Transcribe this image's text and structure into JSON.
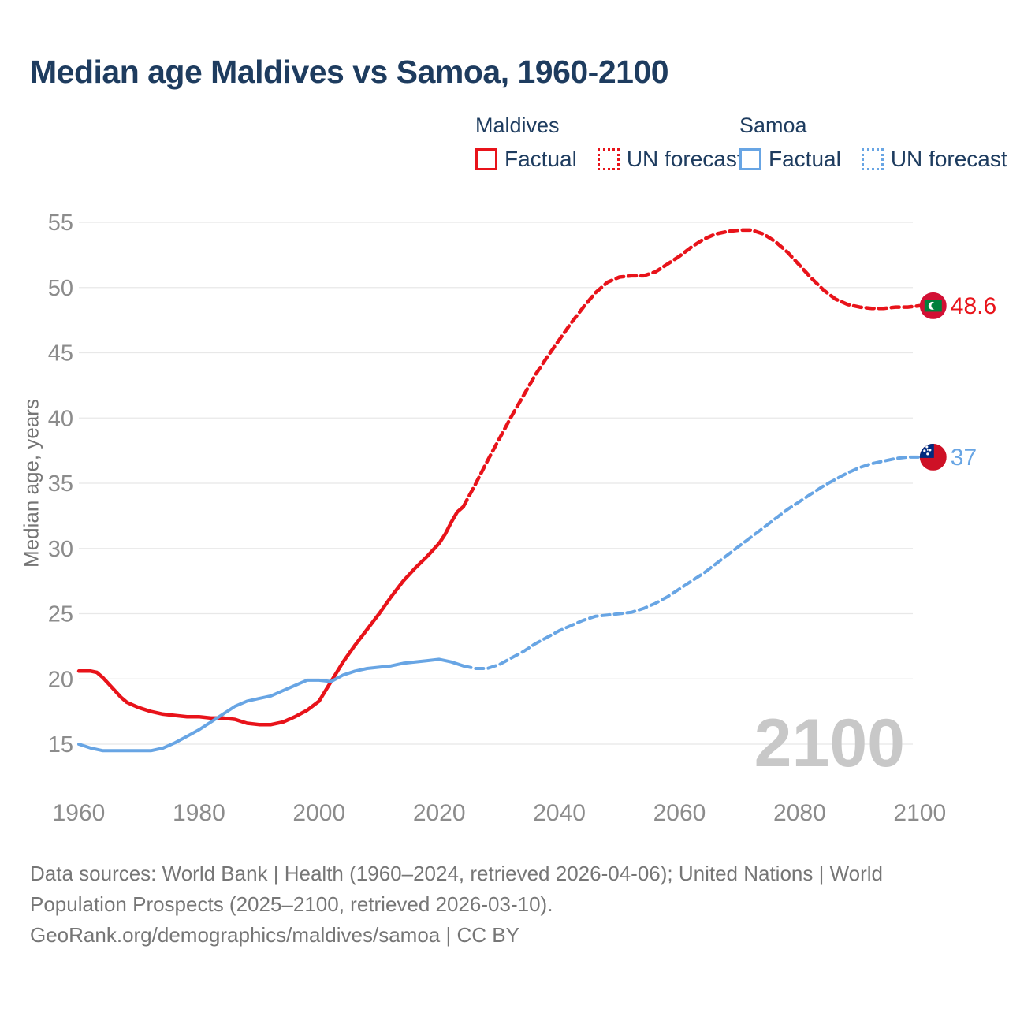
{
  "header": {
    "title": "Median age Maldives vs Samoa, 1960-2100"
  },
  "legend": {
    "groups": [
      {
        "label": "Maldives",
        "color": "#e8131a",
        "items": [
          {
            "label": "Factual",
            "style": "solid"
          },
          {
            "label": "UN forecast",
            "style": "dotted"
          }
        ]
      },
      {
        "label": "Samoa",
        "color": "#68a5e4",
        "items": [
          {
            "label": "Factual",
            "style": "solid"
          },
          {
            "label": "UN forecast",
            "style": "dotted"
          }
        ]
      }
    ]
  },
  "colors": {
    "maldives_line": "#e8131a",
    "samoa_line": "#68a5e4",
    "title_text": "#1e3c5f",
    "axis_text": "#8c8c8c",
    "muted_text": "#757575",
    "grid": "#e8e8e8",
    "watermark": "#c8c8c8",
    "maldives_flag": {
      "field": "#d21034",
      "panel": "#00803d",
      "crescent": "#ffffff"
    },
    "samoa_flag": {
      "field": "#ce1126",
      "canton": "#002b7f",
      "stars": "#ffffff"
    }
  },
  "annotations": {
    "watermark": "2100",
    "maldives_end_label": "48.6",
    "samoa_end_label": "37"
  },
  "chart_data": {
    "type": "line",
    "title": "Median age Maldives vs Samoa, 1960-2100",
    "xlabel": "",
    "ylabel": "Median age, years",
    "xlim": [
      1956,
      2112
    ],
    "ylim": [
      13,
      57
    ],
    "xticks": [
      1960,
      1980,
      2000,
      2020,
      2040,
      2060,
      2080,
      2100
    ],
    "yticks": [
      15,
      20,
      25,
      30,
      35,
      40,
      45,
      50,
      55
    ],
    "grid": "horizontal-only",
    "legend_position": "top-right",
    "series": [
      {
        "id": "maldives-factual-line",
        "name": "Maldives — Factual",
        "color": "#e8131a",
        "style": "solid",
        "points": [
          [
            1960,
            20.6
          ],
          [
            1962,
            20.6
          ],
          [
            1963,
            20.5
          ],
          [
            1964,
            20.1
          ],
          [
            1965,
            19.6
          ],
          [
            1966,
            19.1
          ],
          [
            1967,
            18.6
          ],
          [
            1968,
            18.2
          ],
          [
            1969,
            18.0
          ],
          [
            1970,
            17.8
          ],
          [
            1972,
            17.5
          ],
          [
            1974,
            17.3
          ],
          [
            1976,
            17.2
          ],
          [
            1978,
            17.1
          ],
          [
            1980,
            17.1
          ],
          [
            1982,
            17.0
          ],
          [
            1984,
            17.0
          ],
          [
            1986,
            16.9
          ],
          [
            1988,
            16.6
          ],
          [
            1990,
            16.5
          ],
          [
            1992,
            16.5
          ],
          [
            1994,
            16.7
          ],
          [
            1996,
            17.1
          ],
          [
            1998,
            17.6
          ],
          [
            2000,
            18.3
          ],
          [
            2002,
            19.8
          ],
          [
            2004,
            21.3
          ],
          [
            2006,
            22.6
          ],
          [
            2008,
            23.8
          ],
          [
            2010,
            25.0
          ],
          [
            2012,
            26.3
          ],
          [
            2014,
            27.5
          ],
          [
            2016,
            28.5
          ],
          [
            2018,
            29.4
          ],
          [
            2020,
            30.4
          ],
          [
            2021,
            31.1
          ],
          [
            2022,
            32.0
          ],
          [
            2023,
            32.8
          ],
          [
            2024,
            33.2
          ]
        ]
      },
      {
        "id": "maldives-forecast-line",
        "name": "Maldives — UN forecast",
        "color": "#e8131a",
        "style": "dashed",
        "points": [
          [
            2024,
            33.2
          ],
          [
            2026,
            34.9
          ],
          [
            2028,
            36.7
          ],
          [
            2030,
            38.4
          ],
          [
            2032,
            40.1
          ],
          [
            2034,
            41.7
          ],
          [
            2036,
            43.3
          ],
          [
            2038,
            44.7
          ],
          [
            2040,
            46.0
          ],
          [
            2042,
            47.3
          ],
          [
            2044,
            48.5
          ],
          [
            2046,
            49.6
          ],
          [
            2048,
            50.4
          ],
          [
            2050,
            50.8
          ],
          [
            2052,
            50.9
          ],
          [
            2054,
            50.9
          ],
          [
            2056,
            51.2
          ],
          [
            2058,
            51.8
          ],
          [
            2060,
            52.4
          ],
          [
            2062,
            53.1
          ],
          [
            2064,
            53.7
          ],
          [
            2066,
            54.1
          ],
          [
            2068,
            54.3
          ],
          [
            2070,
            54.4
          ],
          [
            2072,
            54.4
          ],
          [
            2074,
            54.1
          ],
          [
            2076,
            53.5
          ],
          [
            2078,
            52.7
          ],
          [
            2080,
            51.7
          ],
          [
            2082,
            50.7
          ],
          [
            2084,
            49.8
          ],
          [
            2086,
            49.1
          ],
          [
            2088,
            48.7
          ],
          [
            2090,
            48.5
          ],
          [
            2092,
            48.4
          ],
          [
            2094,
            48.4
          ],
          [
            2096,
            48.5
          ],
          [
            2098,
            48.5
          ],
          [
            2100,
            48.6
          ]
        ]
      },
      {
        "id": "samoa-factual-line",
        "name": "Samoa — Factual",
        "color": "#68a5e4",
        "style": "solid",
        "points": [
          [
            1960,
            15.0
          ],
          [
            1962,
            14.7
          ],
          [
            1964,
            14.5
          ],
          [
            1966,
            14.5
          ],
          [
            1968,
            14.5
          ],
          [
            1970,
            14.5
          ],
          [
            1972,
            14.5
          ],
          [
            1974,
            14.7
          ],
          [
            1976,
            15.1
          ],
          [
            1978,
            15.6
          ],
          [
            1980,
            16.1
          ],
          [
            1982,
            16.7
          ],
          [
            1984,
            17.3
          ],
          [
            1986,
            17.9
          ],
          [
            1988,
            18.3
          ],
          [
            1990,
            18.5
          ],
          [
            1992,
            18.7
          ],
          [
            1994,
            19.1
          ],
          [
            1996,
            19.5
          ],
          [
            1998,
            19.9
          ],
          [
            2000,
            19.9
          ],
          [
            2002,
            19.8
          ],
          [
            2004,
            20.3
          ],
          [
            2006,
            20.6
          ],
          [
            2008,
            20.8
          ],
          [
            2010,
            20.9
          ],
          [
            2012,
            21.0
          ],
          [
            2014,
            21.2
          ],
          [
            2016,
            21.3
          ],
          [
            2018,
            21.4
          ],
          [
            2020,
            21.5
          ],
          [
            2022,
            21.3
          ],
          [
            2024,
            21.0
          ]
        ]
      },
      {
        "id": "samoa-forecast-line",
        "name": "Samoa — UN forecast",
        "color": "#68a5e4",
        "style": "dashed",
        "points": [
          [
            2024,
            21.0
          ],
          [
            2026,
            20.8
          ],
          [
            2028,
            20.8
          ],
          [
            2030,
            21.1
          ],
          [
            2032,
            21.6
          ],
          [
            2034,
            22.1
          ],
          [
            2036,
            22.7
          ],
          [
            2038,
            23.2
          ],
          [
            2040,
            23.7
          ],
          [
            2042,
            24.1
          ],
          [
            2044,
            24.5
          ],
          [
            2046,
            24.8
          ],
          [
            2048,
            24.9
          ],
          [
            2050,
            25.0
          ],
          [
            2052,
            25.1
          ],
          [
            2054,
            25.4
          ],
          [
            2056,
            25.8
          ],
          [
            2058,
            26.3
          ],
          [
            2060,
            26.9
          ],
          [
            2062,
            27.5
          ],
          [
            2064,
            28.1
          ],
          [
            2066,
            28.8
          ],
          [
            2068,
            29.5
          ],
          [
            2070,
            30.2
          ],
          [
            2072,
            30.9
          ],
          [
            2074,
            31.6
          ],
          [
            2076,
            32.3
          ],
          [
            2078,
            33.0
          ],
          [
            2080,
            33.6
          ],
          [
            2082,
            34.2
          ],
          [
            2084,
            34.8
          ],
          [
            2086,
            35.3
          ],
          [
            2088,
            35.8
          ],
          [
            2090,
            36.2
          ],
          [
            2092,
            36.5
          ],
          [
            2094,
            36.7
          ],
          [
            2096,
            36.9
          ],
          [
            2098,
            37.0
          ],
          [
            2100,
            37.0
          ]
        ]
      }
    ],
    "end_markers": [
      {
        "country": "Maldives",
        "flag": "maldives",
        "year": 2100,
        "value": 48.6,
        "label": "48.6",
        "color": "#e8131a"
      },
      {
        "country": "Samoa",
        "flag": "samoa",
        "year": 2100,
        "value": 37,
        "label": "37",
        "color": "#68a5e4"
      }
    ]
  },
  "footer": {
    "lines": [
      "Data sources: World Bank | Health (1960–2024, retrieved 2026-04-06); United Nations | World",
      "Population Prospects (2025–2100, retrieved 2026-03-10).",
      "GeoRank.org/demographics/maldives/samoa | CC BY"
    ]
  }
}
